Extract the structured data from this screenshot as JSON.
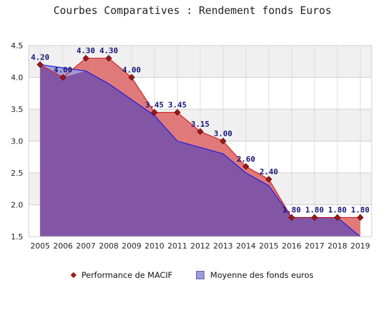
{
  "chart_data": {
    "type": "area",
    "title": "Courbes Comparatives : Rendement fonds Euros",
    "xlabel": "",
    "ylabel": "",
    "categories": [
      "2005",
      "2006",
      "2007",
      "2008",
      "2009",
      "2010",
      "2011",
      "2012",
      "2013",
      "2014",
      "2015",
      "2016",
      "2017",
      "2018",
      "2019"
    ],
    "ylim": [
      1.5,
      4.5
    ],
    "yticks": [
      "4.5",
      "4.0",
      "3.5",
      "3.0",
      "2.5",
      "2.0",
      "1.5"
    ],
    "grid": true,
    "series": [
      {
        "name": "Performance de MACIF",
        "values": [
          4.2,
          4.0,
          4.3,
          4.3,
          4.0,
          3.45,
          3.45,
          3.15,
          3.0,
          2.6,
          2.4,
          1.8,
          1.8,
          1.8,
          1.8
        ],
        "labels": [
          "4.20",
          "4.00",
          "4.30",
          "4.30",
          "4.00",
          "3.45",
          "3.45",
          "3.15",
          "3.00",
          "2.60",
          "2.40",
          "1.80",
          "1.80",
          "1.80",
          "1.80"
        ],
        "color": "#d42020",
        "fill": "#e07a7a",
        "marker": "#a01818"
      },
      {
        "name": "Moyenne des fonds euros",
        "values": [
          4.2,
          4.15,
          4.1,
          3.9,
          3.65,
          3.4,
          3.0,
          2.9,
          2.8,
          2.5,
          2.3,
          1.8,
          1.8,
          1.8,
          1.5
        ],
        "color": "#1a1ae6",
        "fill": "#9c9cdc"
      }
    ],
    "legend": "bottom"
  }
}
